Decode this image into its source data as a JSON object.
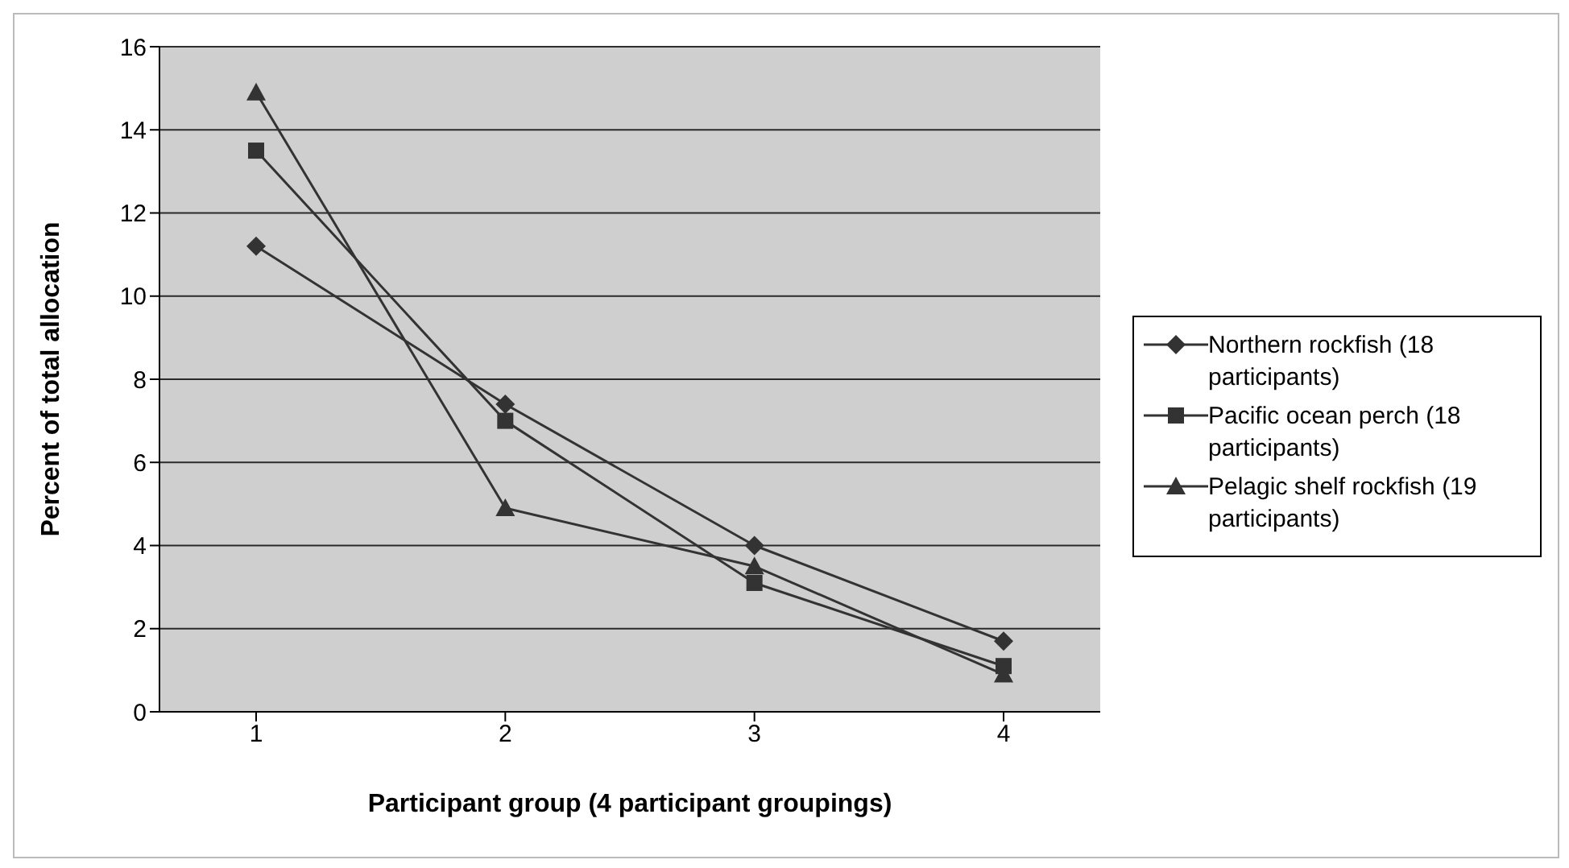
{
  "chart_data": {
    "type": "line",
    "xlabel": "Participant group (4 participant groupings)",
    "ylabel": "Percent of total allocation",
    "categories": [
      "1",
      "2",
      "3",
      "4"
    ],
    "series": [
      {
        "name": "Northern rockfish (18 participants)",
        "color": "#333333",
        "marker": "diamond",
        "values": [
          11.2,
          7.4,
          4.0,
          1.7
        ]
      },
      {
        "name": "Pacific ocean perch (18 participants)",
        "color": "#333333",
        "marker": "square",
        "values": [
          13.5,
          7.0,
          3.1,
          1.1
        ]
      },
      {
        "name": "Pelagic shelf rockfish (19 participants)",
        "color": "#333333",
        "marker": "triangle",
        "values": [
          14.9,
          4.9,
          3.5,
          0.9
        ]
      }
    ],
    "ylim": [
      0,
      16
    ],
    "yticks": [
      0,
      2,
      4,
      6,
      8,
      10,
      12,
      14,
      16
    ],
    "grid": "y",
    "legend": "right"
  }
}
